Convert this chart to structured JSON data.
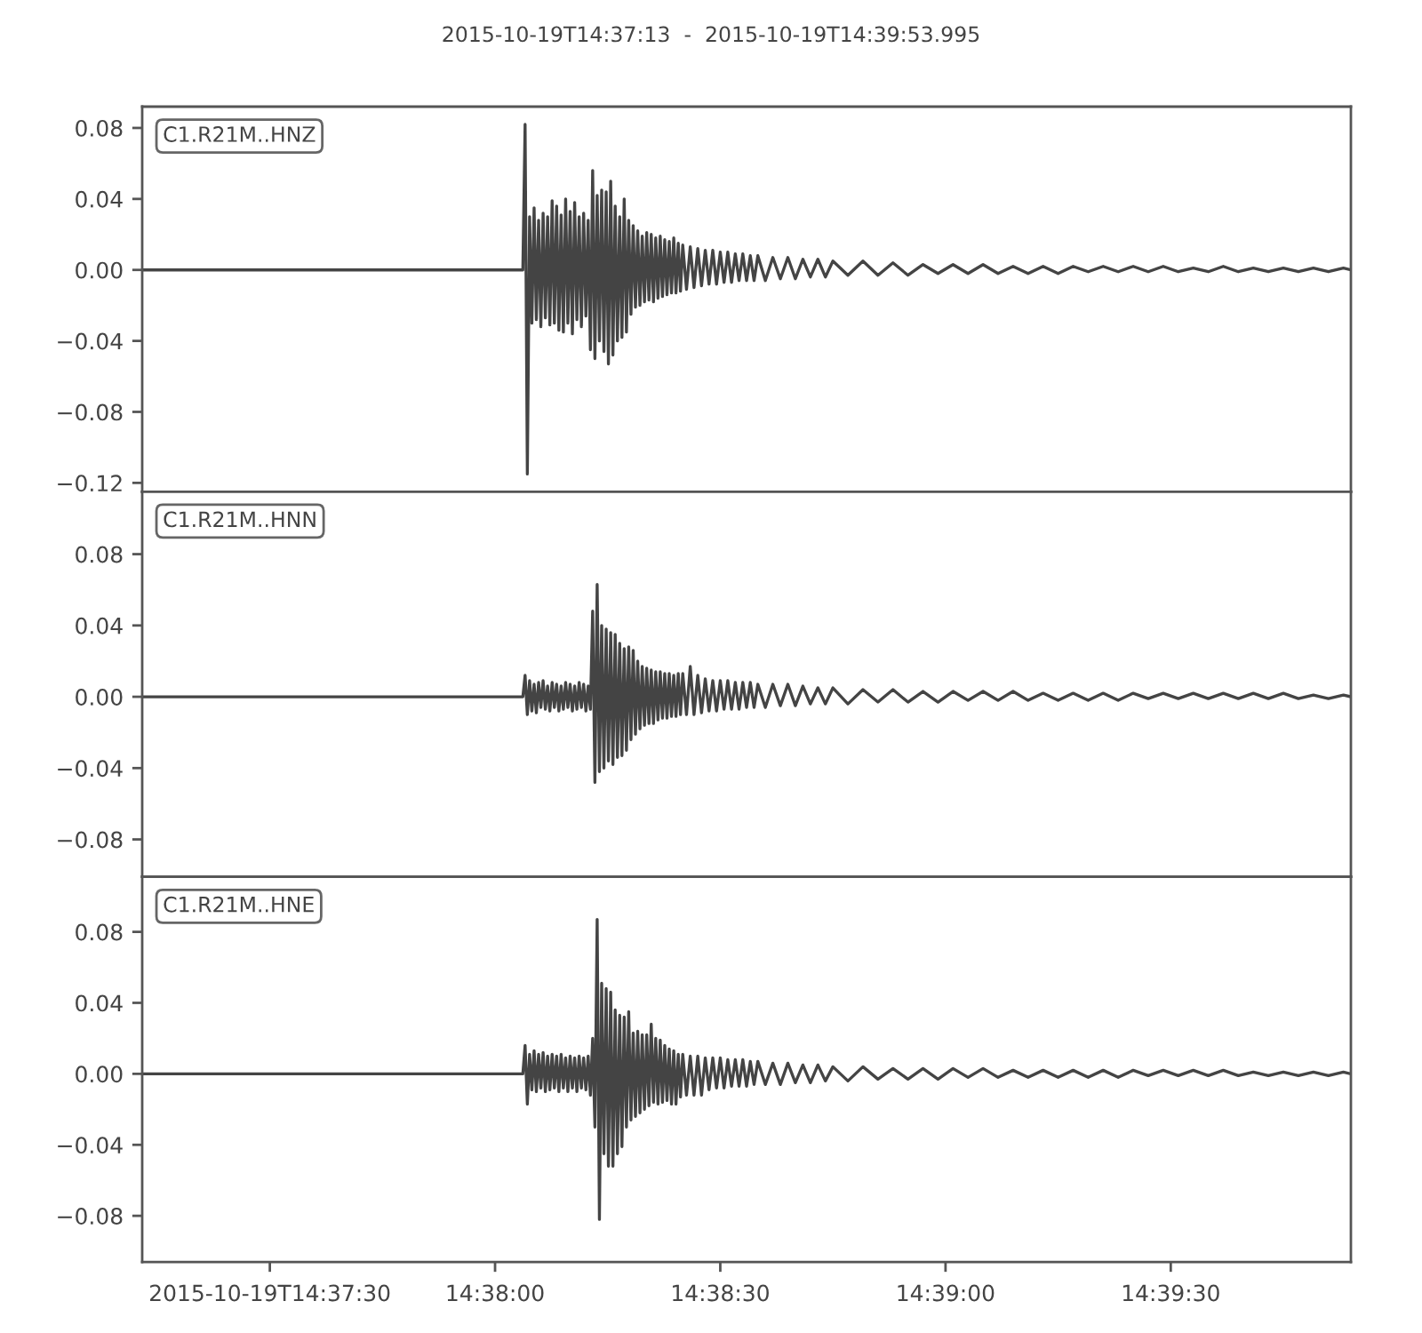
{
  "chart_data": [
    {
      "type": "line",
      "title": "2015-10-19T14:37:13  -  2015-10-19T14:39:53.995",
      "annotations": [
        "C1.R21M..HNZ"
      ],
      "tick_labels": "y",
      "xlim": [
        "2015-10-19T14:37:13",
        "2015-10-19T14:39:53.995"
      ],
      "ylim": [
        -0.125,
        0.092
      ],
      "yticks": [
        {
          "value": 0.08,
          "label": "0.08"
        },
        {
          "value": 0.04,
          "label": "0.04"
        },
        {
          "value": 0,
          "label": "0.00"
        },
        {
          "value": -0.04,
          "label": "−0.04"
        },
        {
          "value": -0.08,
          "label": "−0.08"
        },
        {
          "value": -0.12,
          "label": "−0.12"
        }
      ],
      "x": [
        "2015-10-19T14:37:13",
        "2015-10-19T14:38:03.7",
        "2015-10-19T14:38:04.0",
        "2015-10-19T14:38:04.3",
        "2015-10-19T14:38:04.6",
        "2015-10-19T14:38:04.9",
        "2015-10-19T14:38:05.2",
        "2015-10-19T14:38:05.5",
        "2015-10-19T14:38:05.8",
        "2015-10-19T14:38:06.1",
        "2015-10-19T14:38:06.4",
        "2015-10-19T14:38:06.7",
        "2015-10-19T14:38:07.0",
        "2015-10-19T14:38:07.3",
        "2015-10-19T14:38:07.6",
        "2015-10-19T14:38:07.9",
        "2015-10-19T14:38:08.2",
        "2015-10-19T14:38:08.5",
        "2015-10-19T14:38:08.8",
        "2015-10-19T14:38:09.1",
        "2015-10-19T14:38:09.4",
        "2015-10-19T14:38:09.7",
        "2015-10-19T14:38:10.0",
        "2015-10-19T14:38:10.3",
        "2015-10-19T14:38:10.6",
        "2015-10-19T14:38:10.9",
        "2015-10-19T14:38:11.2",
        "2015-10-19T14:38:11.5",
        "2015-10-19T14:38:11.8",
        "2015-10-19T14:38:12.1",
        "2015-10-19T14:38:12.4",
        "2015-10-19T14:38:12.7",
        "2015-10-19T14:38:13.0",
        "2015-10-19T14:38:13.3",
        "2015-10-19T14:38:13.6",
        "2015-10-19T14:38:13.9",
        "2015-10-19T14:38:14.2",
        "2015-10-19T14:38:14.5",
        "2015-10-19T14:38:14.8",
        "2015-10-19T14:38:15.1",
        "2015-10-19T14:38:15.4",
        "2015-10-19T14:38:15.7",
        "2015-10-19T14:38:16.0",
        "2015-10-19T14:38:16.3",
        "2015-10-19T14:38:16.6",
        "2015-10-19T14:38:16.9",
        "2015-10-19T14:38:17.2",
        "2015-10-19T14:38:17.5",
        "2015-10-19T14:38:17.8",
        "2015-10-19T14:38:18.1",
        "2015-10-19T14:38:18.4",
        "2015-10-19T14:38:18.7",
        "2015-10-19T14:38:19.0",
        "2015-10-19T14:38:19.3",
        "2015-10-19T14:38:19.6",
        "2015-10-19T14:38:19.9",
        "2015-10-19T14:38:20.2",
        "2015-10-19T14:38:20.5",
        "2015-10-19T14:38:20.8",
        "2015-10-19T14:38:21.1",
        "2015-10-19T14:38:21.4",
        "2015-10-19T14:38:21.7",
        "2015-10-19T14:38:22.0",
        "2015-10-19T14:38:22.3",
        "2015-10-19T14:38:22.6",
        "2015-10-19T14:38:22.9",
        "2015-10-19T14:38:23.2",
        "2015-10-19T14:38:23.5",
        "2015-10-19T14:38:23.8",
        "2015-10-19T14:38:24.1",
        "2015-10-19T14:38:24.4",
        "2015-10-19T14:38:24.7",
        "2015-10-19T14:38:25.0",
        "2015-10-19T14:38:25.5",
        "2015-10-19T14:38:26.0",
        "2015-10-19T14:38:26.5",
        "2015-10-19T14:38:27.0",
        "2015-10-19T14:38:27.5",
        "2015-10-19T14:38:28.0",
        "2015-10-19T14:38:28.5",
        "2015-10-19T14:38:29.0",
        "2015-10-19T14:38:29.5",
        "2015-10-19T14:38:30.0",
        "2015-10-19T14:38:30.5",
        "2015-10-19T14:38:31.0",
        "2015-10-19T14:38:31.5",
        "2015-10-19T14:38:32.0",
        "2015-10-19T14:38:32.5",
        "2015-10-19T14:38:33.0",
        "2015-10-19T14:38:33.5",
        "2015-10-19T14:38:34.0",
        "2015-10-19T14:38:34.5",
        "2015-10-19T14:38:35.0",
        "2015-10-19T14:38:36",
        "2015-10-19T14:38:37",
        "2015-10-19T14:38:38",
        "2015-10-19T14:38:39",
        "2015-10-19T14:38:40",
        "2015-10-19T14:38:41",
        "2015-10-19T14:38:42",
        "2015-10-19T14:38:43",
        "2015-10-19T14:38:44",
        "2015-10-19T14:38:45",
        "2015-10-19T14:38:47",
        "2015-10-19T14:38:49",
        "2015-10-19T14:38:51",
        "2015-10-19T14:38:53",
        "2015-10-19T14:38:55",
        "2015-10-19T14:38:57",
        "2015-10-19T14:38:59",
        "2015-10-19T14:39:01",
        "2015-10-19T14:39:03",
        "2015-10-19T14:39:05",
        "2015-10-19T14:39:07",
        "2015-10-19T14:39:09",
        "2015-10-19T14:39:11",
        "2015-10-19T14:39:13",
        "2015-10-19T14:39:15",
        "2015-10-19T14:39:17",
        "2015-10-19T14:39:19",
        "2015-10-19T14:39:21",
        "2015-10-19T14:39:23",
        "2015-10-19T14:39:25",
        "2015-10-19T14:39:27",
        "2015-10-19T14:39:29",
        "2015-10-19T14:39:31",
        "2015-10-19T14:39:33",
        "2015-10-19T14:39:35",
        "2015-10-19T14:39:37",
        "2015-10-19T14:39:39",
        "2015-10-19T14:39:41",
        "2015-10-19T14:39:43",
        "2015-10-19T14:39:45",
        "2015-10-19T14:39:47",
        "2015-10-19T14:39:49",
        "2015-10-19T14:39:51",
        "2015-10-19T14:39:53",
        "2015-10-19T14:39:53.995"
      ],
      "series": [
        {
          "color": "#444444",
          "values": [
            0.0,
            0.0,
            0.082,
            -0.115,
            0.03,
            -0.03,
            0.035,
            -0.028,
            0.028,
            -0.032,
            0.032,
            -0.027,
            0.03,
            -0.031,
            0.039,
            -0.03,
            0.036,
            -0.034,
            0.031,
            -0.035,
            0.04,
            -0.03,
            0.033,
            -0.036,
            0.038,
            -0.028,
            0.03,
            -0.032,
            0.032,
            -0.026,
            0.028,
            -0.045,
            0.056,
            -0.05,
            0.042,
            -0.04,
            0.045,
            -0.046,
            0.044,
            -0.053,
            0.05,
            -0.048,
            0.036,
            -0.04,
            0.03,
            -0.038,
            0.04,
            -0.035,
            0.028,
            -0.025,
            0.025,
            -0.021,
            0.022,
            -0.02,
            0.019,
            -0.018,
            0.021,
            -0.017,
            0.02,
            -0.018,
            0.018,
            -0.016,
            0.019,
            -0.015,
            0.017,
            -0.014,
            0.016,
            -0.013,
            0.018,
            -0.013,
            0.015,
            -0.012,
            0.014,
            -0.011,
            0.013,
            -0.01,
            0.012,
            -0.009,
            0.011,
            -0.008,
            0.011,
            -0.008,
            0.01,
            -0.007,
            0.01,
            -0.007,
            0.009,
            -0.006,
            0.009,
            -0.006,
            0.008,
            -0.006,
            0.008,
            -0.006,
            0.007,
            -0.005,
            0.007,
            -0.005,
            0.006,
            -0.004,
            0.006,
            -0.004,
            0.005,
            -0.003,
            0.005,
            -0.003,
            0.004,
            -0.003,
            0.003,
            -0.002,
            0.003,
            -0.002,
            0.003,
            -0.002,
            0.002,
            -0.002,
            0.002,
            -0.002,
            0.002,
            -0.001,
            0.002,
            -0.001,
            0.002,
            -0.001,
            0.002,
            -0.001,
            0.001,
            -0.001,
            0.002,
            -0.001,
            0.001,
            -0.001,
            0.001,
            -0.001,
            0.001,
            -0.001,
            0.001,
            0.0
          ]
        }
      ]
    },
    {
      "type": "line",
      "annotations": [
        "C1.R21M..HNN"
      ],
      "tick_labels": "y",
      "xlim": [
        "2015-10-19T14:37:13",
        "2015-10-19T14:39:53.995"
      ],
      "ylim": [
        -0.101,
        0.115
      ],
      "yticks": [
        {
          "value": 0.08,
          "label": "0.08"
        },
        {
          "value": 0.04,
          "label": "0.04"
        },
        {
          "value": 0,
          "label": "0.00"
        },
        {
          "value": -0.04,
          "label": "−0.04"
        },
        {
          "value": -0.08,
          "label": "−0.08"
        }
      ],
      "x": [
        "2015-10-19T14:37:13",
        "2015-10-19T14:38:03.7",
        "2015-10-19T14:38:04.0",
        "2015-10-19T14:38:04.3",
        "2015-10-19T14:38:04.6",
        "2015-10-19T14:38:04.9",
        "2015-10-19T14:38:05.2",
        "2015-10-19T14:38:05.5",
        "2015-10-19T14:38:05.8",
        "2015-10-19T14:38:06.1",
        "2015-10-19T14:38:06.4",
        "2015-10-19T14:38:06.7",
        "2015-10-19T14:38:07.0",
        "2015-10-19T14:38:07.3",
        "2015-10-19T14:38:07.6",
        "2015-10-19T14:38:07.9",
        "2015-10-19T14:38:08.2",
        "2015-10-19T14:38:08.5",
        "2015-10-19T14:38:08.8",
        "2015-10-19T14:38:09.1",
        "2015-10-19T14:38:09.4",
        "2015-10-19T14:38:09.7",
        "2015-10-19T14:38:10.0",
        "2015-10-19T14:38:10.3",
        "2015-10-19T14:38:10.6",
        "2015-10-19T14:38:10.9",
        "2015-10-19T14:38:11.2",
        "2015-10-19T14:38:11.5",
        "2015-10-19T14:38:11.8",
        "2015-10-19T14:38:12.1",
        "2015-10-19T14:38:12.4",
        "2015-10-19T14:38:12.7",
        "2015-10-19T14:38:13.0",
        "2015-10-19T14:38:13.3",
        "2015-10-19T14:38:13.6",
        "2015-10-19T14:38:13.9",
        "2015-10-19T14:38:14.2",
        "2015-10-19T14:38:14.5",
        "2015-10-19T14:38:14.8",
        "2015-10-19T14:38:15.1",
        "2015-10-19T14:38:15.4",
        "2015-10-19T14:38:15.7",
        "2015-10-19T14:38:16.0",
        "2015-10-19T14:38:16.3",
        "2015-10-19T14:38:16.6",
        "2015-10-19T14:38:16.9",
        "2015-10-19T14:38:17.2",
        "2015-10-19T14:38:17.5",
        "2015-10-19T14:38:17.8",
        "2015-10-19T14:38:18.1",
        "2015-10-19T14:38:18.4",
        "2015-10-19T14:38:18.7",
        "2015-10-19T14:38:19.0",
        "2015-10-19T14:38:19.3",
        "2015-10-19T14:38:19.6",
        "2015-10-19T14:38:19.9",
        "2015-10-19T14:38:20.2",
        "2015-10-19T14:38:20.5",
        "2015-10-19T14:38:20.8",
        "2015-10-19T14:38:21.1",
        "2015-10-19T14:38:21.4",
        "2015-10-19T14:38:21.7",
        "2015-10-19T14:38:22.0",
        "2015-10-19T14:38:22.3",
        "2015-10-19T14:38:22.6",
        "2015-10-19T14:38:22.9",
        "2015-10-19T14:38:23.2",
        "2015-10-19T14:38:23.5",
        "2015-10-19T14:38:23.8",
        "2015-10-19T14:38:24.1",
        "2015-10-19T14:38:24.4",
        "2015-10-19T14:38:24.7",
        "2015-10-19T14:38:25.0",
        "2015-10-19T14:38:25.5",
        "2015-10-19T14:38:26.0",
        "2015-10-19T14:38:26.5",
        "2015-10-19T14:38:27.0",
        "2015-10-19T14:38:27.5",
        "2015-10-19T14:38:28.0",
        "2015-10-19T14:38:28.5",
        "2015-10-19T14:38:29.0",
        "2015-10-19T14:38:29.5",
        "2015-10-19T14:38:30.0",
        "2015-10-19T14:38:30.5",
        "2015-10-19T14:38:31.0",
        "2015-10-19T14:38:31.5",
        "2015-10-19T14:38:32.0",
        "2015-10-19T14:38:32.5",
        "2015-10-19T14:38:33.0",
        "2015-10-19T14:38:33.5",
        "2015-10-19T14:38:34.0",
        "2015-10-19T14:38:34.5",
        "2015-10-19T14:38:35.0",
        "2015-10-19T14:38:36",
        "2015-10-19T14:38:37",
        "2015-10-19T14:38:38",
        "2015-10-19T14:38:39",
        "2015-10-19T14:38:40",
        "2015-10-19T14:38:41",
        "2015-10-19T14:38:42",
        "2015-10-19T14:38:43",
        "2015-10-19T14:38:44",
        "2015-10-19T14:38:45",
        "2015-10-19T14:38:47",
        "2015-10-19T14:38:49",
        "2015-10-19T14:38:51",
        "2015-10-19T14:38:53",
        "2015-10-19T14:38:55",
        "2015-10-19T14:38:57",
        "2015-10-19T14:38:59",
        "2015-10-19T14:39:01",
        "2015-10-19T14:39:03",
        "2015-10-19T14:39:05",
        "2015-10-19T14:39:07",
        "2015-10-19T14:39:09",
        "2015-10-19T14:39:11",
        "2015-10-19T14:39:13",
        "2015-10-19T14:39:15",
        "2015-10-19T14:39:17",
        "2015-10-19T14:39:19",
        "2015-10-19T14:39:21",
        "2015-10-19T14:39:23",
        "2015-10-19T14:39:25",
        "2015-10-19T14:39:27",
        "2015-10-19T14:39:29",
        "2015-10-19T14:39:31",
        "2015-10-19T14:39:33",
        "2015-10-19T14:39:35",
        "2015-10-19T14:39:37",
        "2015-10-19T14:39:39",
        "2015-10-19T14:39:41",
        "2015-10-19T14:39:43",
        "2015-10-19T14:39:45",
        "2015-10-19T14:39:47",
        "2015-10-19T14:39:49",
        "2015-10-19T14:39:51",
        "2015-10-19T14:39:53",
        "2015-10-19T14:39:53.995"
      ],
      "series": [
        {
          "color": "#444444",
          "values": [
            0.0,
            0.0,
            0.012,
            -0.01,
            0.009,
            -0.008,
            0.007,
            -0.009,
            0.008,
            -0.006,
            0.009,
            -0.007,
            0.006,
            -0.008,
            0.008,
            -0.006,
            0.007,
            -0.008,
            0.006,
            -0.007,
            0.008,
            -0.006,
            0.007,
            -0.008,
            0.006,
            -0.007,
            0.008,
            -0.006,
            0.007,
            -0.008,
            0.006,
            -0.007,
            0.048,
            -0.048,
            0.063,
            -0.042,
            0.04,
            -0.04,
            0.038,
            -0.036,
            0.036,
            -0.038,
            0.035,
            -0.034,
            0.03,
            -0.033,
            0.027,
            -0.03,
            0.028,
            -0.024,
            0.026,
            -0.021,
            0.02,
            -0.018,
            0.017,
            -0.016,
            0.016,
            -0.015,
            0.015,
            -0.015,
            0.014,
            -0.013,
            0.014,
            -0.012,
            0.013,
            -0.012,
            0.013,
            -0.011,
            0.012,
            -0.011,
            0.013,
            -0.01,
            0.013,
            -0.01,
            0.017,
            -0.01,
            0.012,
            -0.009,
            0.01,
            -0.008,
            0.009,
            -0.008,
            0.009,
            -0.007,
            0.009,
            -0.007,
            0.008,
            -0.007,
            0.008,
            -0.006,
            0.008,
            -0.006,
            0.007,
            -0.006,
            0.007,
            -0.005,
            0.007,
            -0.005,
            0.006,
            -0.004,
            0.005,
            -0.004,
            0.005,
            -0.004,
            0.004,
            -0.003,
            0.004,
            -0.003,
            0.003,
            -0.003,
            0.003,
            -0.002,
            0.003,
            -0.002,
            0.003,
            -0.002,
            0.002,
            -0.002,
            0.002,
            -0.002,
            0.002,
            -0.002,
            0.002,
            -0.001,
            0.002,
            -0.001,
            0.002,
            -0.001,
            0.002,
            -0.001,
            0.002,
            -0.001,
            0.002,
            -0.001,
            0.001,
            -0.001,
            0.001,
            0.0
          ]
        }
      ]
    },
    {
      "type": "line",
      "annotations": [
        "C1.R21M..HNE"
      ],
      "xlim": [
        "2015-10-19T14:37:13",
        "2015-10-19T14:39:53.995"
      ],
      "xticks": [
        {
          "value": "2015-10-19T14:37:30",
          "label": "2015-10-19T14:37:30"
        },
        {
          "value": "2015-10-19T14:38:00",
          "label": "14:38:00"
        },
        {
          "value": "2015-10-19T14:38:30",
          "label": "14:38:30"
        },
        {
          "value": "2015-10-19T14:39:00",
          "label": "14:39:00"
        },
        {
          "value": "2015-10-19T14:39:30",
          "label": "14:39:30"
        }
      ],
      "ylim": [
        -0.106,
        0.111
      ],
      "yticks": [
        {
          "value": 0.08,
          "label": "0.08"
        },
        {
          "value": 0.04,
          "label": "0.04"
        },
        {
          "value": 0,
          "label": "0.00"
        },
        {
          "value": -0.04,
          "label": "−0.04"
        },
        {
          "value": -0.08,
          "label": "−0.08"
        }
      ],
      "x": [
        "2015-10-19T14:37:13",
        "2015-10-19T14:38:03.7",
        "2015-10-19T14:38:04.0",
        "2015-10-19T14:38:04.3",
        "2015-10-19T14:38:04.6",
        "2015-10-19T14:38:04.9",
        "2015-10-19T14:38:05.2",
        "2015-10-19T14:38:05.5",
        "2015-10-19T14:38:05.8",
        "2015-10-19T14:38:06.1",
        "2015-10-19T14:38:06.4",
        "2015-10-19T14:38:06.7",
        "2015-10-19T14:38:07.0",
        "2015-10-19T14:38:07.3",
        "2015-10-19T14:38:07.6",
        "2015-10-19T14:38:07.9",
        "2015-10-19T14:38:08.2",
        "2015-10-19T14:38:08.5",
        "2015-10-19T14:38:08.8",
        "2015-10-19T14:38:09.1",
        "2015-10-19T14:38:09.4",
        "2015-10-19T14:38:09.7",
        "2015-10-19T14:38:10.0",
        "2015-10-19T14:38:10.3",
        "2015-10-19T14:38:10.6",
        "2015-10-19T14:38:10.9",
        "2015-10-19T14:38:11.2",
        "2015-10-19T14:38:11.5",
        "2015-10-19T14:38:11.8",
        "2015-10-19T14:38:12.1",
        "2015-10-19T14:38:12.4",
        "2015-10-19T14:38:12.7",
        "2015-10-19T14:38:13.0",
        "2015-10-19T14:38:13.3",
        "2015-10-19T14:38:13.6",
        "2015-10-19T14:38:13.9",
        "2015-10-19T14:38:14.2",
        "2015-10-19T14:38:14.5",
        "2015-10-19T14:38:14.8",
        "2015-10-19T14:38:15.1",
        "2015-10-19T14:38:15.4",
        "2015-10-19T14:38:15.7",
        "2015-10-19T14:38:16.0",
        "2015-10-19T14:38:16.3",
        "2015-10-19T14:38:16.6",
        "2015-10-19T14:38:16.9",
        "2015-10-19T14:38:17.2",
        "2015-10-19T14:38:17.5",
        "2015-10-19T14:38:17.8",
        "2015-10-19T14:38:18.1",
        "2015-10-19T14:38:18.4",
        "2015-10-19T14:38:18.7",
        "2015-10-19T14:38:19.0",
        "2015-10-19T14:38:19.3",
        "2015-10-19T14:38:19.6",
        "2015-10-19T14:38:19.9",
        "2015-10-19T14:38:20.2",
        "2015-10-19T14:38:20.5",
        "2015-10-19T14:38:20.8",
        "2015-10-19T14:38:21.1",
        "2015-10-19T14:38:21.4",
        "2015-10-19T14:38:21.7",
        "2015-10-19T14:38:22.0",
        "2015-10-19T14:38:22.3",
        "2015-10-19T14:38:22.6",
        "2015-10-19T14:38:22.9",
        "2015-10-19T14:38:23.2",
        "2015-10-19T14:38:23.5",
        "2015-10-19T14:38:23.8",
        "2015-10-19T14:38:24.1",
        "2015-10-19T14:38:24.4",
        "2015-10-19T14:38:24.7",
        "2015-10-19T14:38:25.0",
        "2015-10-19T14:38:25.5",
        "2015-10-19T14:38:26.0",
        "2015-10-19T14:38:26.5",
        "2015-10-19T14:38:27.0",
        "2015-10-19T14:38:27.5",
        "2015-10-19T14:38:28.0",
        "2015-10-19T14:38:28.5",
        "2015-10-19T14:38:29.0",
        "2015-10-19T14:38:29.5",
        "2015-10-19T14:38:30.0",
        "2015-10-19T14:38:30.5",
        "2015-10-19T14:38:31.0",
        "2015-10-19T14:38:31.5",
        "2015-10-19T14:38:32.0",
        "2015-10-19T14:38:32.5",
        "2015-10-19T14:38:33.0",
        "2015-10-19T14:38:33.5",
        "2015-10-19T14:38:34.0",
        "2015-10-19T14:38:34.5",
        "2015-10-19T14:38:35.0",
        "2015-10-19T14:38:36",
        "2015-10-19T14:38:37",
        "2015-10-19T14:38:38",
        "2015-10-19T14:38:39",
        "2015-10-19T14:38:40",
        "2015-10-19T14:38:41",
        "2015-10-19T14:38:42",
        "2015-10-19T14:38:43",
        "2015-10-19T14:38:44",
        "2015-10-19T14:38:45",
        "2015-10-19T14:38:47",
        "2015-10-19T14:38:49",
        "2015-10-19T14:38:51",
        "2015-10-19T14:38:53",
        "2015-10-19T14:38:55",
        "2015-10-19T14:38:57",
        "2015-10-19T14:38:59",
        "2015-10-19T14:39:01",
        "2015-10-19T14:39:03",
        "2015-10-19T14:39:05",
        "2015-10-19T14:39:07",
        "2015-10-19T14:39:09",
        "2015-10-19T14:39:11",
        "2015-10-19T14:39:13",
        "2015-10-19T14:39:15",
        "2015-10-19T14:39:17",
        "2015-10-19T14:39:19",
        "2015-10-19T14:39:21",
        "2015-10-19T14:39:23",
        "2015-10-19T14:39:25",
        "2015-10-19T14:39:27",
        "2015-10-19T14:39:29",
        "2015-10-19T14:39:31",
        "2015-10-19T14:39:33",
        "2015-10-19T14:39:35",
        "2015-10-19T14:39:37",
        "2015-10-19T14:39:39",
        "2015-10-19T14:39:41",
        "2015-10-19T14:39:43",
        "2015-10-19T14:39:45",
        "2015-10-19T14:39:47",
        "2015-10-19T14:39:49",
        "2015-10-19T14:39:51",
        "2015-10-19T14:39:53",
        "2015-10-19T14:39:53.995"
      ],
      "series": [
        {
          "color": "#444444",
          "values": [
            0.0,
            0.0,
            0.016,
            -0.017,
            0.011,
            -0.009,
            0.013,
            -0.01,
            0.011,
            -0.008,
            0.012,
            -0.01,
            0.01,
            -0.009,
            0.011,
            -0.008,
            0.01,
            -0.01,
            0.011,
            -0.008,
            0.009,
            -0.01,
            0.01,
            -0.008,
            0.009,
            -0.01,
            0.01,
            -0.008,
            0.009,
            -0.009,
            0.01,
            -0.012,
            0.02,
            -0.03,
            0.087,
            -0.082,
            0.051,
            -0.045,
            0.048,
            -0.052,
            0.046,
            -0.052,
            0.036,
            -0.045,
            0.033,
            -0.041,
            0.032,
            -0.03,
            0.035,
            -0.026,
            0.023,
            -0.024,
            0.024,
            -0.022,
            0.022,
            -0.02,
            0.022,
            -0.018,
            0.028,
            -0.016,
            0.02,
            -0.017,
            0.019,
            -0.016,
            0.016,
            -0.015,
            0.014,
            -0.017,
            0.013,
            -0.017,
            0.011,
            -0.013,
            0.011,
            -0.012,
            0.01,
            -0.012,
            0.01,
            -0.012,
            0.009,
            -0.009,
            0.009,
            -0.008,
            0.009,
            -0.008,
            0.008,
            -0.007,
            0.008,
            -0.007,
            0.008,
            -0.007,
            0.007,
            -0.006,
            0.007,
            -0.006,
            0.006,
            -0.006,
            0.006,
            -0.005,
            0.005,
            -0.005,
            0.005,
            -0.004,
            0.004,
            -0.004,
            0.004,
            -0.003,
            0.003,
            -0.003,
            0.003,
            -0.003,
            0.003,
            -0.002,
            0.003,
            -0.002,
            0.002,
            -0.002,
            0.002,
            -0.002,
            0.002,
            -0.002,
            0.002,
            -0.002,
            0.002,
            -0.001,
            0.002,
            -0.001,
            0.002,
            -0.001,
            0.002,
            -0.001,
            0.001,
            -0.001,
            0.001,
            -0.001,
            0.001,
            -0.001,
            0.001,
            0.0
          ]
        }
      ]
    }
  ]
}
